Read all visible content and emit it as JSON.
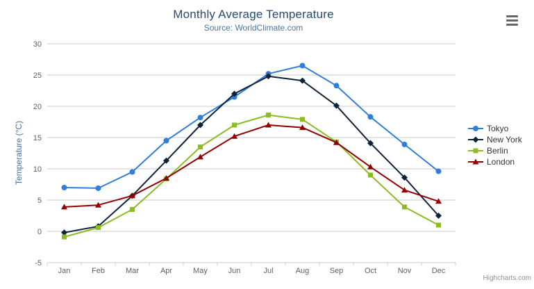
{
  "chart_data": {
    "type": "line",
    "title": "Monthly Average Temperature",
    "subtitle": "Source: WorldClimate.com",
    "xlabel": "",
    "ylabel": "Temperature (°C)",
    "ylim": [
      -5,
      30
    ],
    "ytick_step": 5,
    "grid": true,
    "legend_position": "right",
    "categories": [
      "Jan",
      "Feb",
      "Mar",
      "Apr",
      "May",
      "Jun",
      "Jul",
      "Aug",
      "Sep",
      "Oct",
      "Nov",
      "Dec"
    ],
    "series": [
      {
        "name": "Tokyo",
        "color": "#2f7ed8",
        "marker": "circle",
        "values": [
          7.0,
          6.9,
          9.5,
          14.5,
          18.2,
          21.5,
          25.2,
          26.5,
          23.3,
          18.3,
          13.9,
          9.6
        ]
      },
      {
        "name": "New York",
        "color": "#0d233a",
        "marker": "diamond",
        "values": [
          -0.2,
          0.8,
          5.7,
          11.3,
          17.0,
          22.0,
          24.8,
          24.1,
          20.1,
          14.1,
          8.6,
          2.5
        ]
      },
      {
        "name": "Berlin",
        "color": "#8bbc21",
        "marker": "square",
        "values": [
          -0.9,
          0.6,
          3.5,
          8.4,
          13.5,
          17.0,
          18.6,
          17.9,
          14.3,
          9.0,
          3.9,
          1.0
        ]
      },
      {
        "name": "London",
        "color": "#910000",
        "marker": "triangle",
        "values": [
          3.9,
          4.2,
          5.7,
          8.5,
          11.9,
          15.2,
          17.0,
          16.6,
          14.2,
          10.3,
          6.6,
          4.8
        ]
      }
    ],
    "credits": "Highcharts.com"
  },
  "colors": {
    "title": "#274b6d",
    "subtitle": "#4d759e",
    "axis_title": "#4572a7",
    "axis_labels": "#606060",
    "grid_line": "#c8c8c8",
    "x_axis_line": "#c0d0e0",
    "legend_text": "#333333",
    "credits": "#909090",
    "menu_icon": "#666666"
  },
  "icons": {
    "menu": "hamburger-icon"
  }
}
